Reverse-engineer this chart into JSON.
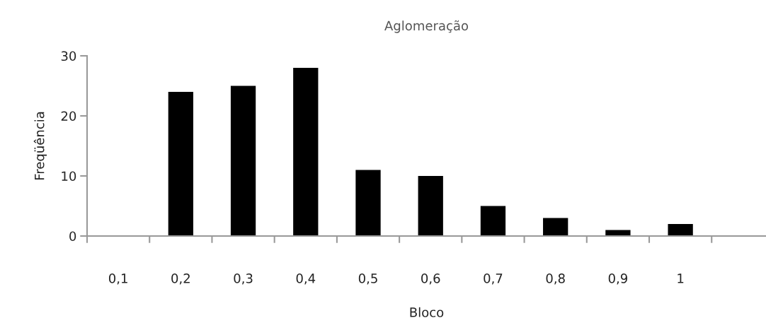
{
  "chart_data": {
    "type": "bar",
    "title": "Aglomeração",
    "xlabel": "Bloco",
    "ylabel": "Freqüência",
    "categories": [
      "0,1",
      "0,2",
      "0,3",
      "0,4",
      "0,5",
      "0,6",
      "0,7",
      "0,8",
      "0,9",
      "1"
    ],
    "values": [
      0,
      24,
      25,
      28,
      11,
      10,
      5,
      3,
      1,
      2
    ],
    "color": "#000000",
    "ylim": [
      0,
      30
    ],
    "yticks": [
      0,
      10,
      20,
      30
    ],
    "grid": false,
    "legend": false
  }
}
